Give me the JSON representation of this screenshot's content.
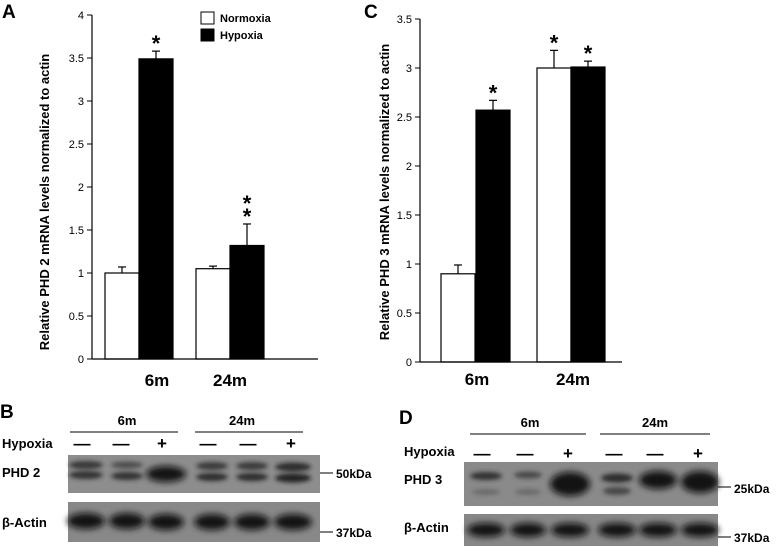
{
  "panels": {
    "a": {
      "letter": "A"
    },
    "b": {
      "letter": "B"
    },
    "c": {
      "letter": "C"
    },
    "d": {
      "letter": "D"
    }
  },
  "legend": {
    "normoxia": "Normoxia",
    "hypoxia": "Hypoxia",
    "normoxia_color": "#ffffff",
    "hypoxia_color": "#000000"
  },
  "chart_data": [
    {
      "id": "A",
      "type": "bar",
      "categories": [
        "6m",
        "24m"
      ],
      "series": [
        {
          "name": "Normoxia",
          "values": [
            1.0,
            1.05
          ],
          "errors": [
            0.07,
            0.03
          ],
          "color": "#ffffff"
        },
        {
          "name": "Hypoxia",
          "values": [
            3.49,
            1.32
          ],
          "errors": [
            0.09,
            0.25
          ],
          "color": "#000000"
        }
      ],
      "annotations": [
        {
          "series": 1,
          "category": 0,
          "text": "*"
        },
        {
          "series": 1,
          "category": 1,
          "text": "*"
        },
        {
          "series": 1,
          "category": 1,
          "text": "*"
        }
      ],
      "ylabel": "Relative PHD 2 mRNA levels normalized to actin",
      "ylim": [
        0,
        4
      ],
      "yticks": [
        "0",
        "0.5",
        "1",
        "1.5",
        "2",
        "2.5",
        "3",
        "3.5",
        "4"
      ],
      "legend": "top-right"
    },
    {
      "id": "C",
      "type": "bar",
      "categories": [
        "6m",
        "24m"
      ],
      "series": [
        {
          "name": "Normoxia",
          "values": [
            0.9,
            3.0
          ],
          "errors": [
            0.09,
            0.18
          ],
          "color": "#ffffff"
        },
        {
          "name": "Hypoxia",
          "values": [
            2.57,
            3.01
          ],
          "errors": [
            0.1,
            0.06
          ],
          "color": "#000000"
        }
      ],
      "annotations": [
        {
          "series": 1,
          "category": 0,
          "text": "*"
        },
        {
          "series": 0,
          "category": 1,
          "text": "*"
        },
        {
          "series": 1,
          "category": 1,
          "text": "*"
        }
      ],
      "ylabel": "Relative PHD 3 mRNA levels normalized to actin",
      "ylim": [
        0,
        3.5
      ],
      "yticks": [
        "0",
        "0.5",
        "1",
        "1.5",
        "2",
        "2.5",
        "3",
        "3.5"
      ]
    }
  ],
  "blot_b": {
    "groups": [
      "6m",
      "24m"
    ],
    "hypoxia_label": "Hypoxia",
    "signs": [
      "—",
      "—",
      "+",
      "—",
      "—",
      "+"
    ],
    "rows": [
      {
        "label": "PHD 2",
        "marker": "50kDa"
      },
      {
        "label": "β-Actin",
        "marker": "37kDa"
      }
    ]
  },
  "blot_d": {
    "groups": [
      "6m",
      "24m"
    ],
    "hypoxia_label": "Hypoxia",
    "signs": [
      "—",
      "—",
      "+",
      "—",
      "—",
      "+"
    ],
    "rows": [
      {
        "label": "PHD 3",
        "marker": "25kDa"
      },
      {
        "label": "β-Actin",
        "marker": "37kDa"
      }
    ]
  }
}
